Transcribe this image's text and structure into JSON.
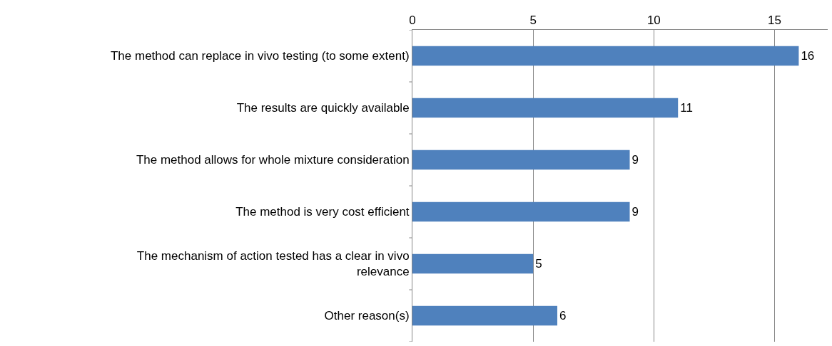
{
  "chart_data": {
    "type": "bar",
    "orientation": "horizontal",
    "categories": [
      "The method can replace in vivo testing (to some extent)",
      "The results are quickly available",
      "The method allows for whole mixture consideration",
      "The method is very cost efficient",
      "The mechanism of action tested has a clear in vivo\nrelevance",
      "Other reason(s)"
    ],
    "values": [
      16,
      11,
      9,
      9,
      5,
      6
    ],
    "color": "#4f81bd",
    "xlim": [
      0,
      17.2
    ],
    "xticks": [
      0,
      5,
      10,
      15
    ],
    "grid": "x",
    "data_labels": true
  }
}
